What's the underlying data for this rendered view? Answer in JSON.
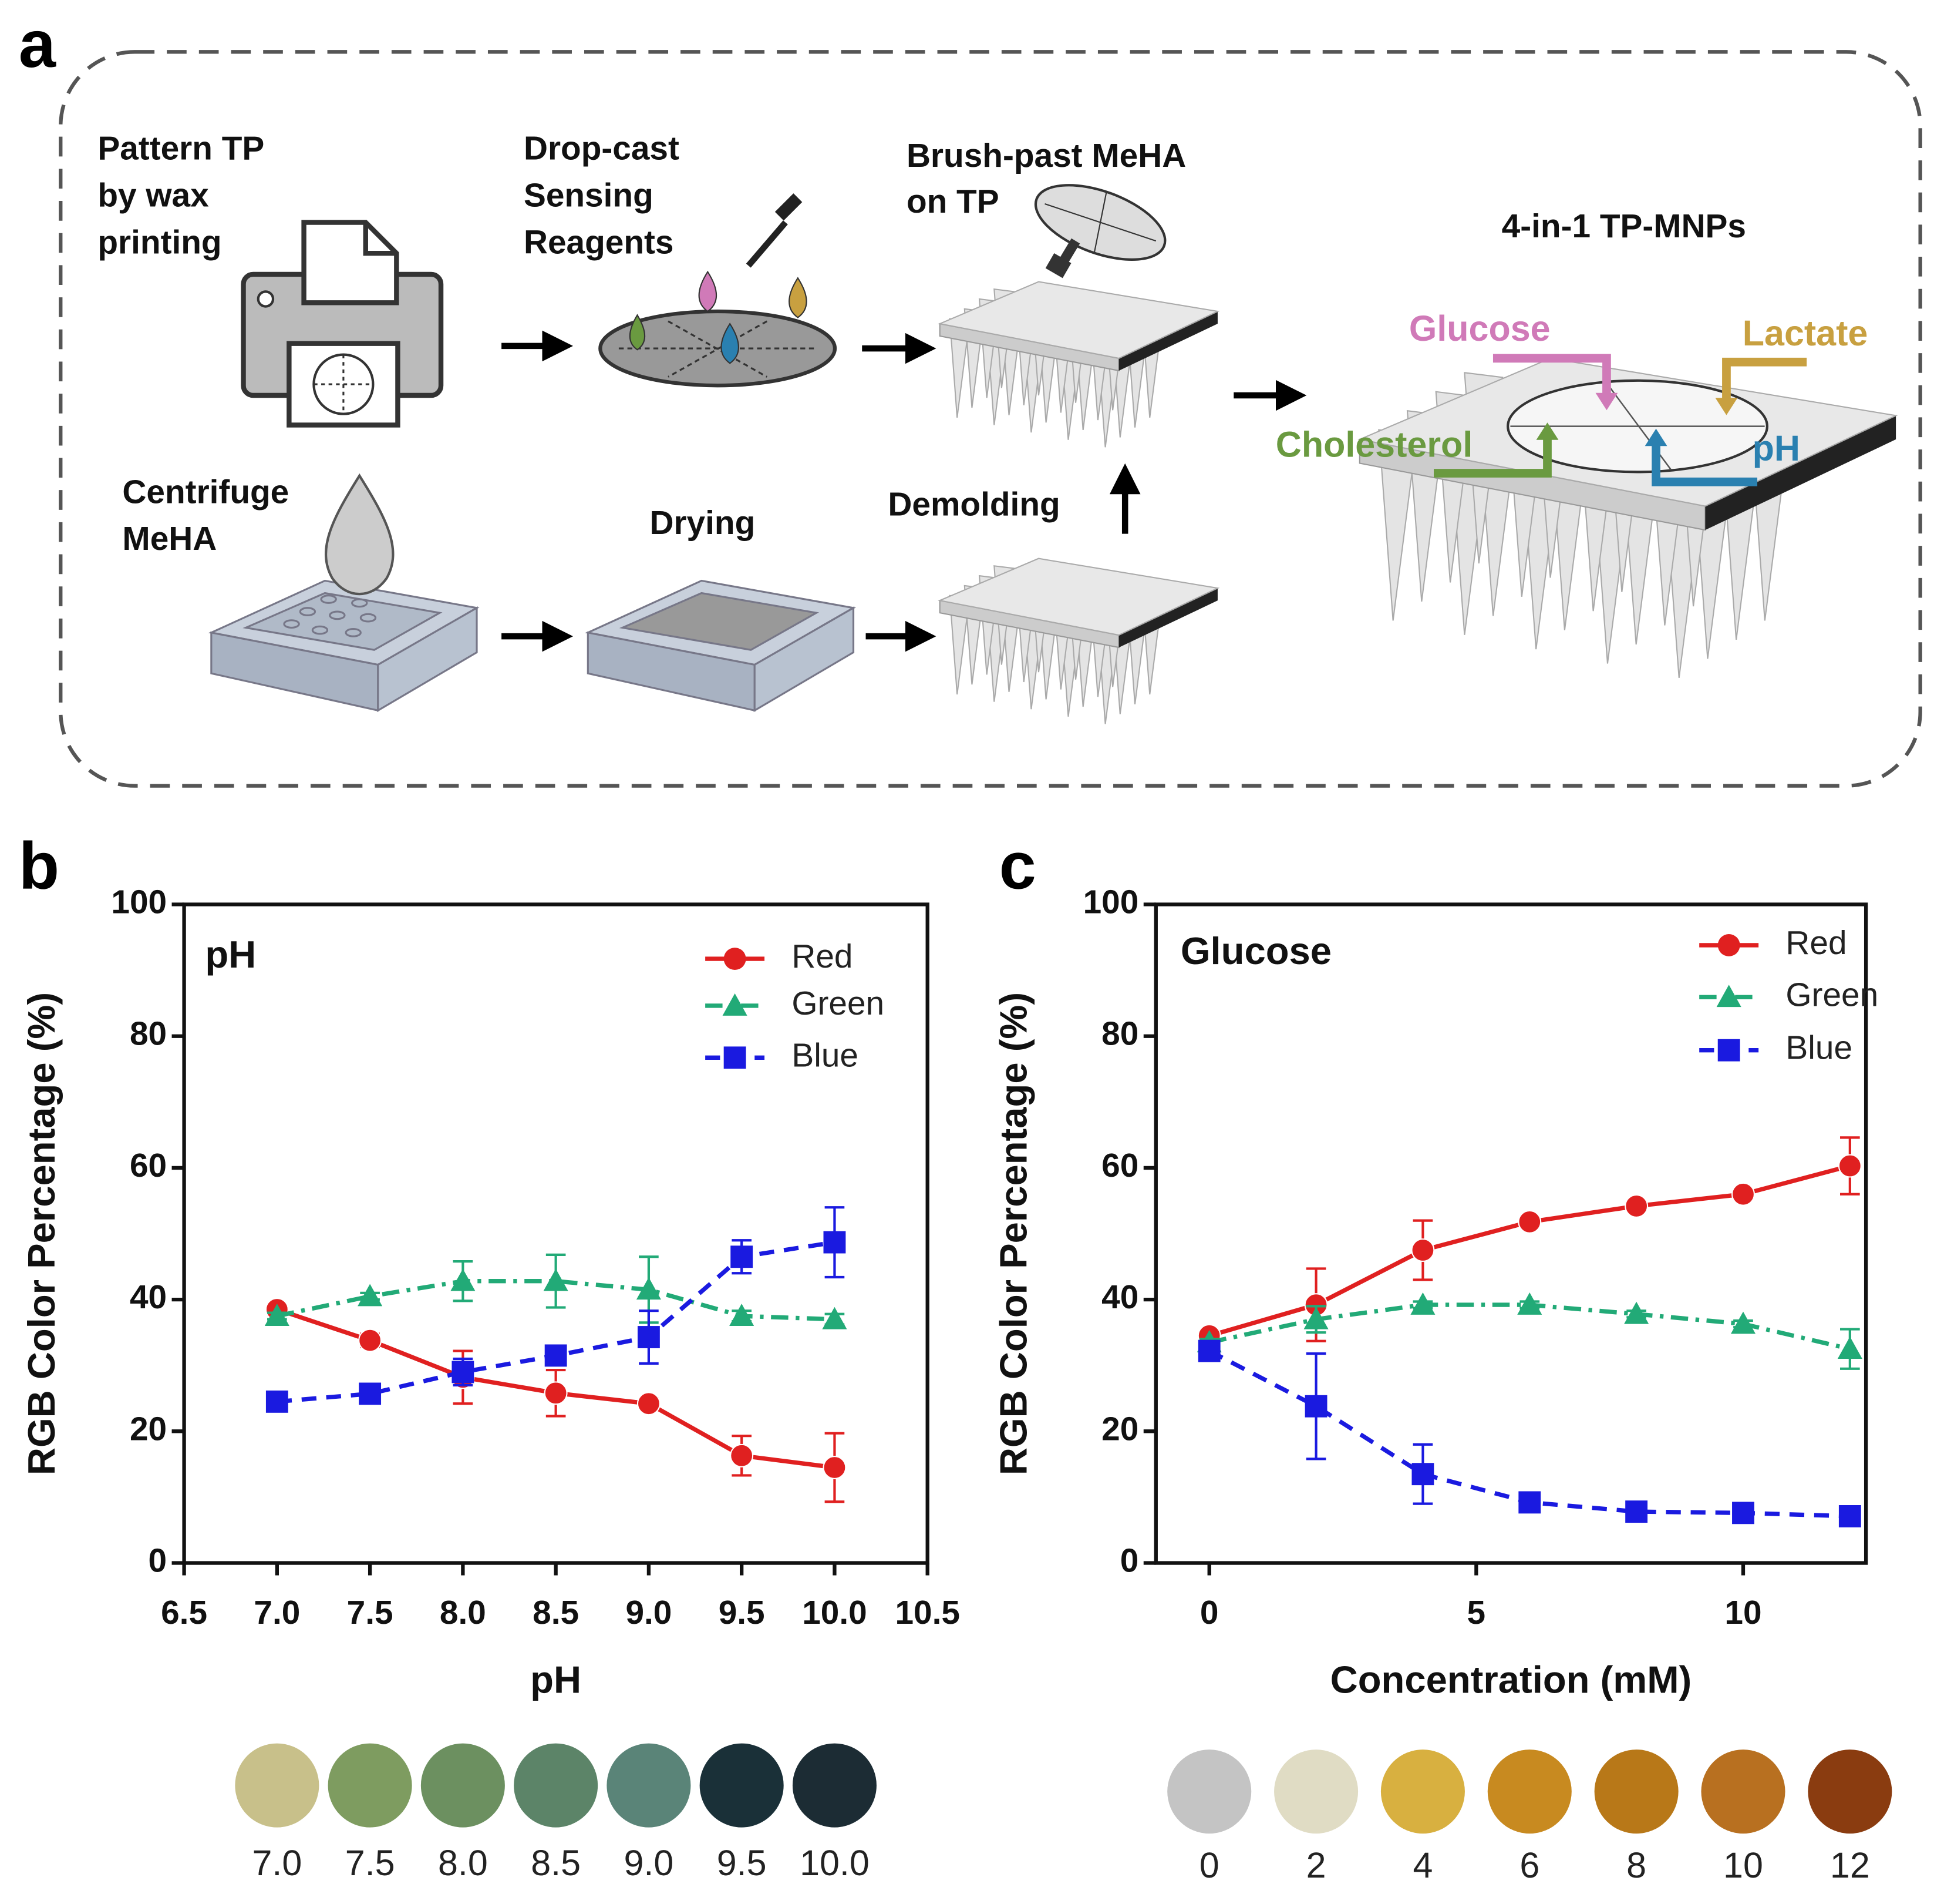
{
  "diagram": {
    "panel_label": "a",
    "steps": [
      [
        "Pattern TP",
        "by wax",
        "printing"
      ],
      [
        "Drop-cast",
        "Sensing",
        "Reagents"
      ],
      [
        "Brush-past MeHA",
        "on TP"
      ],
      [
        "Centrifuge",
        "MeHA"
      ],
      [
        "Drying"
      ],
      [
        "Demolding"
      ]
    ],
    "product_title": "4-in-1 TP-MNPs",
    "analytes": [
      {
        "label": "Glucose",
        "color": "#d07ab8"
      },
      {
        "label": "Lactate",
        "color": "#c8a040"
      },
      {
        "label": "Cholesterol",
        "color": "#6a9a40"
      },
      {
        "label": "pH",
        "color": "#2a80b0"
      }
    ]
  },
  "chart_data": [
    {
      "type": "line",
      "panel_label": "b",
      "annotation": "pH",
      "x_label": "pH",
      "y_label": "RGB Color Percentage (%)",
      "x": [
        7.0,
        7.5,
        8.0,
        8.5,
        9.0,
        9.5,
        10.0
      ],
      "xlim": [
        6.5,
        10.5
      ],
      "xticks": [
        {
          "value": 6.5,
          "label": "6.5"
        },
        {
          "value": 7,
          "label": "7.0"
        },
        {
          "value": 7.5,
          "label": "7.5"
        },
        {
          "value": 8,
          "label": "8.0"
        },
        {
          "value": 8.5,
          "label": "8.5"
        },
        {
          "value": 9,
          "label": "9.0"
        },
        {
          "value": 9.5,
          "label": "9.5"
        },
        {
          "value": 10,
          "label": "10.0"
        },
        {
          "value": 10.5,
          "label": "10.5"
        }
      ],
      "ylim": [
        0,
        100
      ],
      "yticks": [
        0,
        20,
        40,
        60,
        80,
        100
      ],
      "legend": "upper right",
      "series": [
        {
          "name": "Red",
          "color": "#e02020",
          "marker": "circle",
          "line_style": "solid",
          "values": [
            38.5,
            33.8,
            28.2,
            25.8,
            24.2,
            16.3,
            14.5
          ],
          "errors": [
            0.8,
            1,
            4,
            3.5,
            0.8,
            3,
            5.2
          ]
        },
        {
          "name": "Green",
          "color": "#22aa77",
          "marker": "triangle",
          "line_style": "dashdot",
          "values": [
            37.5,
            40.5,
            42.8,
            42.8,
            41.5,
            37.5,
            37
          ],
          "errors": [
            0.5,
            0.5,
            3,
            4,
            5,
            0.8,
            0.8
          ]
        },
        {
          "name": "Blue",
          "color": "#1a1ae0",
          "marker": "square",
          "line_style": "dashed",
          "values": [
            24.5,
            25.7,
            29,
            31.5,
            34.3,
            46.5,
            48.7
          ],
          "errors": [
            0.5,
            0.5,
            2,
            1,
            4,
            2.5,
            5.3
          ]
        }
      ],
      "swatches": {
        "labels": [
          "7.0",
          "7.5",
          "8.0",
          "8.5",
          "9.0",
          "9.5",
          "10.0"
        ],
        "colors": [
          "#c8c08a",
          "#7e9c60",
          "#6c9060",
          "#5c8468",
          "#5a8478",
          "#1a3038",
          "#1c2c34"
        ]
      }
    },
    {
      "type": "line",
      "panel_label": "c",
      "annotation": "Glucose",
      "x_label": "Concentration (mM)",
      "y_label": "RGB Color Percentage (%)",
      "x": [
        0,
        2,
        4,
        6,
        8,
        10,
        12
      ],
      "xlim": [
        -1,
        12.3
      ],
      "xticks": [
        0,
        5,
        10
      ],
      "ylim": [
        0,
        100
      ],
      "yticks": [
        0,
        20,
        40,
        60,
        80,
        100
      ],
      "legend": "upper right",
      "series": [
        {
          "name": "Red",
          "color": "#e02020",
          "marker": "circle",
          "line_style": "solid",
          "values": [
            34.5,
            39.2,
            47.5,
            51.8,
            54.2,
            56,
            60.3
          ],
          "errors": [
            0.5,
            5.5,
            4.5,
            0.5,
            0.5,
            0.5,
            4.3
          ]
        },
        {
          "name": "Green",
          "color": "#22aa77",
          "marker": "triangle",
          "line_style": "dashdot",
          "values": [
            33.5,
            37,
            39.2,
            39.2,
            37.8,
            36.3,
            32.5
          ],
          "errors": [
            0.5,
            2,
            0.5,
            0.5,
            0.5,
            0.5,
            3
          ]
        },
        {
          "name": "Blue",
          "color": "#1a1ae0",
          "marker": "square",
          "line_style": "dashed",
          "values": [
            32.2,
            23.8,
            13.5,
            9.2,
            7.8,
            7.6,
            7.1
          ],
          "errors": [
            0.5,
            8,
            4.5,
            0.5,
            0.5,
            0.5,
            0.5
          ]
        }
      ],
      "swatches": {
        "labels": [
          "0",
          "2",
          "4",
          "6",
          "8",
          "10",
          "12"
        ],
        "colors": [
          "#c4c4c4",
          "#e0dcc4",
          "#d8b040",
          "#c88a20",
          "#b87818",
          "#b87020",
          "#8a3c10"
        ]
      }
    }
  ]
}
